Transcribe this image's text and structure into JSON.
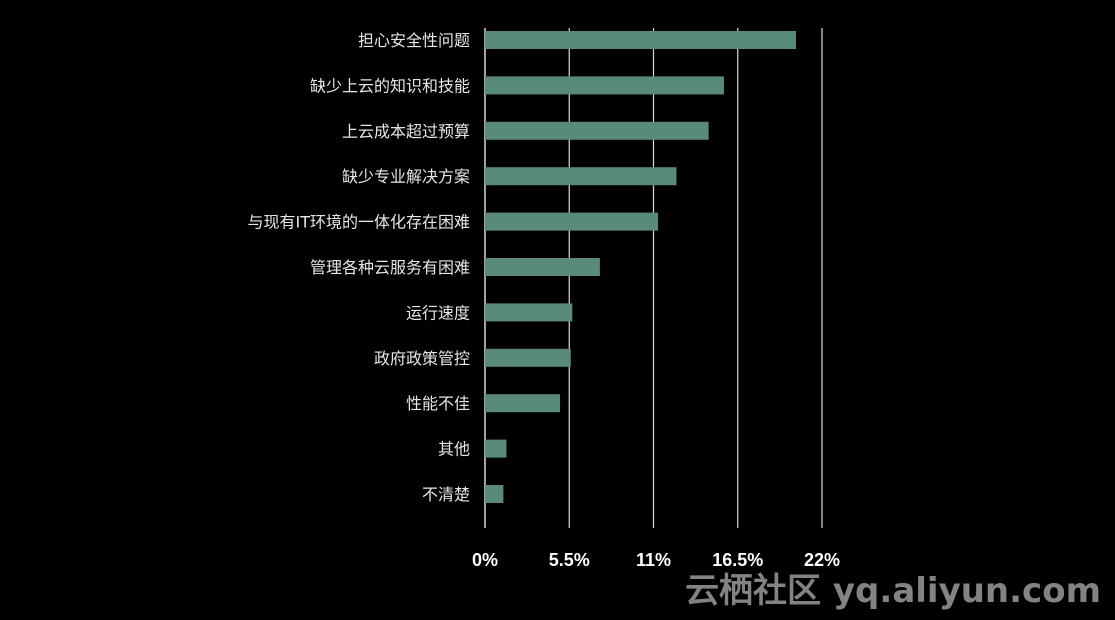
{
  "chart_data": {
    "type": "bar",
    "orientation": "horizontal",
    "title": "",
    "xlabel": "",
    "ylabel": "",
    "categories": [
      "担心安全性问题",
      "缺少上云的知识和技能",
      "上云成本超过预算",
      "缺少专业解决方案",
      "与现有IT环境的一体化存在困难",
      "管理各种云服务有困难",
      "运行速度",
      "政府政策管控",
      "性能不佳",
      "其他",
      "不清楚"
    ],
    "values": [
      20.3,
      15.6,
      14.6,
      12.5,
      11.3,
      7.5,
      5.7,
      5.6,
      4.9,
      1.4,
      1.2
    ],
    "xlim": [
      0,
      22
    ],
    "ticks": [
      0,
      5.5,
      11,
      16.5,
      22
    ],
    "tick_labels": [
      "0%",
      "5.5%",
      "11%",
      "16.5%",
      "22%"
    ],
    "grid": "vertical",
    "bar_color": "#5a8a79",
    "grid_color": "#d9d9d9",
    "background": "#000000"
  },
  "watermark": {
    "text": "云栖社区 yq.aliyun.com"
  }
}
